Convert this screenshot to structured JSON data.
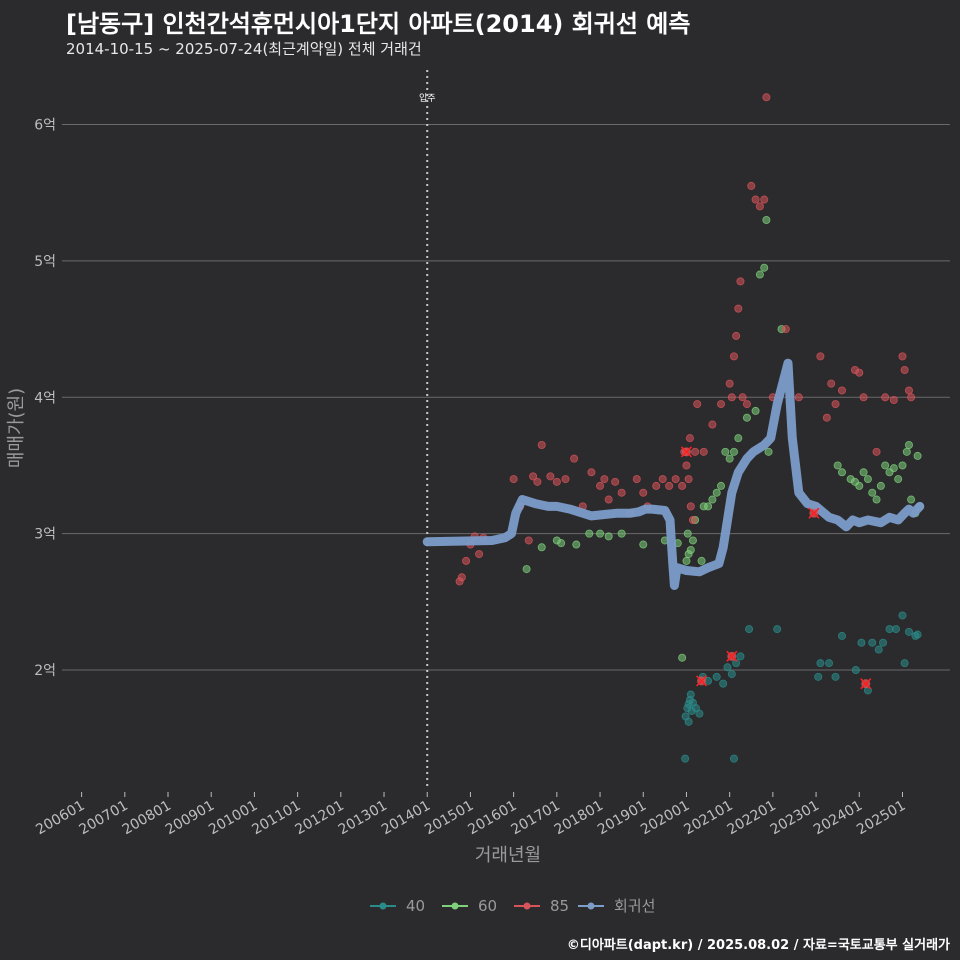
{
  "title": "[남동구] 인천간석휴먼시아1단지 아파트(2014) 회귀선 예측",
  "subtitle": "2014-10-15 ~ 2025-07-24(최근계약일) 전체 거래건",
  "credit": "©디아파트(dapt.kr) / 2025.08.02 / 자료=국토교통부 실거래가",
  "colors": {
    "bg": "#2b2b2d",
    "grid": "#6a6a6a",
    "s40": "#2a8c8a",
    "s60": "#7ed07a",
    "s85": "#d9545a",
    "regression": "#7c9cca",
    "highlight": "#ff2020",
    "vline": "#c8c8c8"
  },
  "chart_data": {
    "type": "scatter",
    "title": "[남동구] 인천간석휴먼시아1단지 아파트(2014) 회귀선 예측",
    "xlabel": "거래년월",
    "ylabel": "매매가(원)",
    "xlim": [
      2005.5,
      2026.1
    ],
    "ylim": [
      1.12,
      6.4
    ],
    "x_ticks": [
      {
        "v": 2006.0,
        "label": "200601"
      },
      {
        "v": 2007.0,
        "label": "200701"
      },
      {
        "v": 2008.0,
        "label": "200801"
      },
      {
        "v": 2009.0,
        "label": "200901"
      },
      {
        "v": 2010.0,
        "label": "201001"
      },
      {
        "v": 2011.0,
        "label": "201101"
      },
      {
        "v": 2012.0,
        "label": "201201"
      },
      {
        "v": 2013.0,
        "label": "201301"
      },
      {
        "v": 2014.0,
        "label": "201401"
      },
      {
        "v": 2015.0,
        "label": "201501"
      },
      {
        "v": 2016.0,
        "label": "201601"
      },
      {
        "v": 2017.0,
        "label": "201701"
      },
      {
        "v": 2018.0,
        "label": "201801"
      },
      {
        "v": 2019.0,
        "label": "201901"
      },
      {
        "v": 2020.0,
        "label": "202001"
      },
      {
        "v": 2021.0,
        "label": "202101"
      },
      {
        "v": 2022.0,
        "label": "202201"
      },
      {
        "v": 2023.0,
        "label": "202301"
      },
      {
        "v": 2024.0,
        "label": "202401"
      },
      {
        "v": 2025.0,
        "label": "202501"
      }
    ],
    "y_ticks": [
      {
        "v": 2,
        "label": "2억"
      },
      {
        "v": 3,
        "label": "3억"
      },
      {
        "v": 4,
        "label": "4억"
      },
      {
        "v": 5,
        "label": "5억"
      },
      {
        "v": 6,
        "label": "6억"
      }
    ],
    "annotation": {
      "x": 2014.0,
      "label": "입주"
    },
    "legend": {
      "position": "bottom",
      "entries": [
        "40",
        "60",
        "85",
        "회귀선"
      ]
    },
    "series": [
      {
        "name": "40",
        "color": "#2a8c8a",
        "points": [
          [
            2019.97,
            1.35
          ],
          [
            2019.98,
            1.66
          ],
          [
            2020.02,
            1.72
          ],
          [
            2020.05,
            1.75
          ],
          [
            2020.08,
            1.78
          ],
          [
            2020.1,
            1.82
          ],
          [
            2020.12,
            1.7
          ],
          [
            2020.05,
            1.62
          ],
          [
            2020.15,
            1.76
          ],
          [
            2020.22,
            1.72
          ],
          [
            2020.3,
            1.68
          ],
          [
            2020.38,
            1.95
          ],
          [
            2020.5,
            1.92
          ],
          [
            2020.7,
            1.95
          ],
          [
            2020.85,
            1.9
          ],
          [
            2020.95,
            2.02
          ],
          [
            2021.05,
            1.97
          ],
          [
            2021.1,
            1.35
          ],
          [
            2021.15,
            2.05
          ],
          [
            2021.25,
            2.1
          ],
          [
            2021.45,
            2.3
          ],
          [
            2022.1,
            2.3
          ],
          [
            2023.05,
            1.95
          ],
          [
            2023.1,
            2.05
          ],
          [
            2023.3,
            2.05
          ],
          [
            2023.45,
            1.95
          ],
          [
            2023.6,
            2.25
          ],
          [
            2023.92,
            2.0
          ],
          [
            2024.05,
            2.2
          ],
          [
            2024.2,
            1.85
          ],
          [
            2024.3,
            2.2
          ],
          [
            2024.45,
            2.15
          ],
          [
            2024.55,
            2.2
          ],
          [
            2024.7,
            2.3
          ],
          [
            2024.85,
            2.3
          ],
          [
            2025.0,
            2.4
          ],
          [
            2025.05,
            2.05
          ],
          [
            2025.15,
            2.28
          ],
          [
            2025.3,
            2.25
          ],
          [
            2025.35,
            2.26
          ]
        ]
      },
      {
        "name": "60",
        "color": "#7ed07a",
        "points": [
          [
            2016.3,
            2.74
          ],
          [
            2016.65,
            2.9
          ],
          [
            2017.0,
            2.95
          ],
          [
            2017.1,
            2.93
          ],
          [
            2017.45,
            2.92
          ],
          [
            2017.75,
            3.0
          ],
          [
            2018.0,
            3.0
          ],
          [
            2018.2,
            2.98
          ],
          [
            2018.5,
            3.0
          ],
          [
            2019.0,
            2.92
          ],
          [
            2019.5,
            2.95
          ],
          [
            2019.8,
            2.93
          ],
          [
            2019.9,
            2.09
          ],
          [
            2020.0,
            2.8
          ],
          [
            2020.03,
            3.0
          ],
          [
            2020.05,
            2.85
          ],
          [
            2020.1,
            2.88
          ],
          [
            2020.15,
            2.95
          ],
          [
            2020.2,
            3.1
          ],
          [
            2020.35,
            2.8
          ],
          [
            2020.4,
            3.2
          ],
          [
            2020.5,
            3.2
          ],
          [
            2020.6,
            3.25
          ],
          [
            2020.7,
            3.3
          ],
          [
            2020.8,
            3.35
          ],
          [
            2020.9,
            3.6
          ],
          [
            2021.0,
            3.55
          ],
          [
            2021.1,
            3.6
          ],
          [
            2021.2,
            3.7
          ],
          [
            2021.4,
            3.85
          ],
          [
            2021.6,
            3.9
          ],
          [
            2021.7,
            4.9
          ],
          [
            2021.8,
            4.95
          ],
          [
            2021.85,
            5.3
          ],
          [
            2021.9,
            3.6
          ],
          [
            2022.2,
            4.5
          ],
          [
            2023.5,
            3.5
          ],
          [
            2023.6,
            3.45
          ],
          [
            2023.8,
            3.4
          ],
          [
            2023.9,
            3.38
          ],
          [
            2024.0,
            3.35
          ],
          [
            2024.1,
            3.45
          ],
          [
            2024.2,
            3.4
          ],
          [
            2024.3,
            3.3
          ],
          [
            2024.4,
            3.25
          ],
          [
            2024.5,
            3.35
          ],
          [
            2024.6,
            3.5
          ],
          [
            2024.7,
            3.45
          ],
          [
            2024.8,
            3.48
          ],
          [
            2024.9,
            3.4
          ],
          [
            2025.0,
            3.5
          ],
          [
            2025.1,
            3.6
          ],
          [
            2025.15,
            3.65
          ],
          [
            2025.2,
            3.25
          ],
          [
            2025.3,
            3.15
          ],
          [
            2025.35,
            3.57
          ],
          [
            2025.4,
            3.2
          ]
        ]
      },
      {
        "name": "85",
        "color": "#d9545a",
        "points": [
          [
            2014.75,
            2.65
          ],
          [
            2014.8,
            2.68
          ],
          [
            2014.9,
            2.8
          ],
          [
            2015.0,
            2.92
          ],
          [
            2015.1,
            2.98
          ],
          [
            2015.2,
            2.85
          ],
          [
            2015.3,
            2.97
          ],
          [
            2016.0,
            3.4
          ],
          [
            2016.15,
            3.2
          ],
          [
            2016.35,
            2.95
          ],
          [
            2016.45,
            3.42
          ],
          [
            2016.55,
            3.38
          ],
          [
            2016.65,
            3.65
          ],
          [
            2016.85,
            3.42
          ],
          [
            2017.0,
            3.38
          ],
          [
            2017.2,
            3.4
          ],
          [
            2017.4,
            3.55
          ],
          [
            2017.6,
            3.2
          ],
          [
            2017.8,
            3.45
          ],
          [
            2018.0,
            3.35
          ],
          [
            2018.1,
            3.4
          ],
          [
            2018.2,
            3.25
          ],
          [
            2018.35,
            3.38
          ],
          [
            2018.5,
            3.3
          ],
          [
            2018.7,
            3.15
          ],
          [
            2018.85,
            3.4
          ],
          [
            2019.0,
            3.3
          ],
          [
            2019.1,
            3.2
          ],
          [
            2019.3,
            3.35
          ],
          [
            2019.45,
            3.4
          ],
          [
            2019.6,
            3.35
          ],
          [
            2019.75,
            3.4
          ],
          [
            2019.9,
            3.35
          ],
          [
            2019.95,
            3.6
          ],
          [
            2020.0,
            3.5
          ],
          [
            2020.05,
            3.4
          ],
          [
            2020.08,
            3.7
          ],
          [
            2020.1,
            3.2
          ],
          [
            2020.15,
            3.1
          ],
          [
            2020.2,
            3.6
          ],
          [
            2020.25,
            3.95
          ],
          [
            2020.4,
            3.6
          ],
          [
            2020.6,
            3.8
          ],
          [
            2020.8,
            3.95
          ],
          [
            2021.0,
            4.1
          ],
          [
            2021.05,
            4.0
          ],
          [
            2021.1,
            4.3
          ],
          [
            2021.15,
            4.45
          ],
          [
            2021.2,
            4.65
          ],
          [
            2021.25,
            4.85
          ],
          [
            2021.3,
            4.0
          ],
          [
            2021.4,
            3.95
          ],
          [
            2021.5,
            5.55
          ],
          [
            2021.6,
            5.45
          ],
          [
            2021.7,
            5.4
          ],
          [
            2021.8,
            5.45
          ],
          [
            2021.85,
            6.2
          ],
          [
            2022.0,
            4.0
          ],
          [
            2022.3,
            4.5
          ],
          [
            2022.6,
            4.0
          ],
          [
            2023.0,
            3.2
          ],
          [
            2023.1,
            4.3
          ],
          [
            2023.25,
            3.85
          ],
          [
            2023.35,
            4.1
          ],
          [
            2023.45,
            3.95
          ],
          [
            2023.6,
            4.05
          ],
          [
            2023.9,
            4.2
          ],
          [
            2024.0,
            4.18
          ],
          [
            2024.1,
            4.0
          ],
          [
            2024.4,
            3.6
          ],
          [
            2024.6,
            4.0
          ],
          [
            2024.8,
            3.98
          ],
          [
            2025.0,
            4.3
          ],
          [
            2025.05,
            4.2
          ],
          [
            2025.15,
            4.05
          ],
          [
            2025.2,
            4.0
          ]
        ]
      }
    ],
    "highlights": [
      [
        2020.0,
        3.6
      ],
      [
        2020.35,
        1.92
      ],
      [
        2021.05,
        2.1
      ],
      [
        2022.95,
        3.15
      ],
      [
        2024.15,
        1.9
      ]
    ],
    "regression": {
      "name": "회귀선",
      "color": "#7c9cca",
      "points": [
        [
          2014.0,
          2.94
        ],
        [
          2015.5,
          2.95
        ],
        [
          2015.8,
          2.97
        ],
        [
          2015.95,
          3.0
        ],
        [
          2016.05,
          3.15
        ],
        [
          2016.2,
          3.25
        ],
        [
          2016.5,
          3.22
        ],
        [
          2016.8,
          3.2
        ],
        [
          2017.0,
          3.2
        ],
        [
          2017.3,
          3.18
        ],
        [
          2017.6,
          3.15
        ],
        [
          2017.8,
          3.13
        ],
        [
          2018.1,
          3.14
        ],
        [
          2018.4,
          3.15
        ],
        [
          2018.7,
          3.15
        ],
        [
          2018.9,
          3.16
        ],
        [
          2019.05,
          3.18
        ],
        [
          2019.2,
          3.18
        ],
        [
          2019.5,
          3.17
        ],
        [
          2019.62,
          3.1
        ],
        [
          2019.68,
          2.8
        ],
        [
          2019.72,
          2.62
        ],
        [
          2019.78,
          2.75
        ],
        [
          2020.0,
          2.73
        ],
        [
          2020.3,
          2.72
        ],
        [
          2020.5,
          2.75
        ],
        [
          2020.75,
          2.78
        ],
        [
          2020.85,
          2.9
        ],
        [
          2020.95,
          3.1
        ],
        [
          2021.05,
          3.3
        ],
        [
          2021.2,
          3.45
        ],
        [
          2021.4,
          3.55
        ],
        [
          2021.55,
          3.6
        ],
        [
          2021.8,
          3.65
        ],
        [
          2021.95,
          3.7
        ],
        [
          2022.1,
          3.95
        ],
        [
          2022.35,
          4.25
        ],
        [
          2022.45,
          3.7
        ],
        [
          2022.6,
          3.3
        ],
        [
          2022.8,
          3.22
        ],
        [
          2023.0,
          3.2
        ],
        [
          2023.3,
          3.12
        ],
        [
          2023.5,
          3.1
        ],
        [
          2023.7,
          3.05
        ],
        [
          2023.85,
          3.1
        ],
        [
          2024.0,
          3.08
        ],
        [
          2024.2,
          3.1
        ],
        [
          2024.5,
          3.08
        ],
        [
          2024.7,
          3.12
        ],
        [
          2024.9,
          3.1
        ],
        [
          2025.05,
          3.15
        ],
        [
          2025.15,
          3.18
        ],
        [
          2025.25,
          3.15
        ],
        [
          2025.4,
          3.2
        ]
      ]
    }
  }
}
